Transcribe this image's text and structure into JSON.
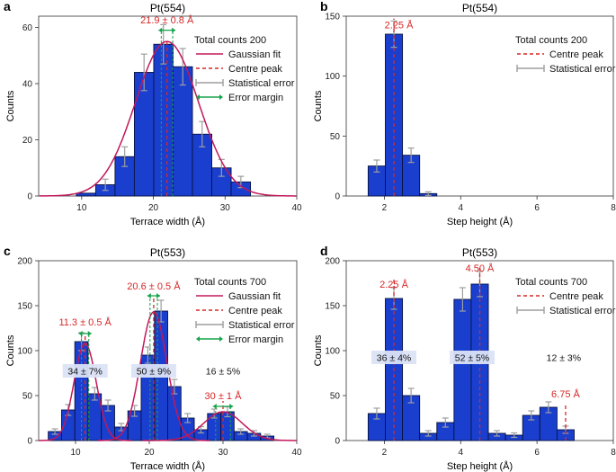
{
  "colors": {
    "bar_fill": "#1a3fcf",
    "bar_edge": "#08123f",
    "fit": "#c2185b",
    "centre": "#d62828",
    "error": "#9e9e9e",
    "margin": "#16a34a",
    "label_box": "#dbe3f5"
  },
  "chart_data": [
    {
      "id": "a",
      "type": "bar",
      "panel_letter": "a",
      "title": "Pt(554)",
      "xlabel": "Terrace width (Å)",
      "ylabel": "Counts",
      "xlim": [
        4,
        40
      ],
      "ylim": [
        0,
        64
      ],
      "xticks": [
        10,
        20,
        30,
        40
      ],
      "yticks": [
        0,
        20,
        40,
        60
      ],
      "bin_width": 2.7,
      "bins": [
        {
          "x": 7.9,
          "y": 0,
          "err": 0
        },
        {
          "x": 10.6,
          "y": 1,
          "err": 0
        },
        {
          "x": 13.3,
          "y": 4,
          "err": 2
        },
        {
          "x": 16.0,
          "y": 14,
          "err": 3.5
        },
        {
          "x": 18.7,
          "y": 44,
          "err": 6.5
        },
        {
          "x": 21.4,
          "y": 54,
          "err": 7
        },
        {
          "x": 24.1,
          "y": 46,
          "err": 6.5
        },
        {
          "x": 26.8,
          "y": 22,
          "err": 4.5
        },
        {
          "x": 29.5,
          "y": 10,
          "err": 3
        },
        {
          "x": 32.2,
          "y": 5,
          "err": 2
        },
        {
          "x": 34.9,
          "y": 0,
          "err": 0
        }
      ],
      "fits": [
        {
          "mu": 21.9,
          "sigma": 4.4,
          "amp": 55
        }
      ],
      "centres": [
        {
          "x": 21.9,
          "top": 56
        }
      ],
      "margins": [
        {
          "x0": 21.1,
          "x1": 22.7,
          "y": 59
        }
      ],
      "annotations": [
        {
          "text": "21.9 ± 0.8 Å",
          "x": 21.9,
          "y": 61.5,
          "color": "centre"
        }
      ],
      "region_labels": [],
      "legend": {
        "title": "Total counts 200",
        "items": [
          {
            "kind": "fit",
            "label": "Gaussian fit"
          },
          {
            "kind": "centre",
            "label": "Centre peak"
          },
          {
            "kind": "error",
            "label": "Statistical error"
          },
          {
            "kind": "margin",
            "label": "Error margin"
          }
        ]
      }
    },
    {
      "id": "b",
      "type": "bar",
      "panel_letter": "b",
      "title": "Pt(554)",
      "xlabel": "Step height (Å)",
      "ylabel": "Counts",
      "xlim": [
        1,
        8
      ],
      "ylim": [
        0,
        150
      ],
      "xticks": [
        2,
        4,
        6,
        8
      ],
      "yticks": [
        0,
        50,
        100,
        150
      ],
      "bin_width": 0.45,
      "bins": [
        {
          "x": 1.8,
          "y": 25,
          "err": 5
        },
        {
          "x": 2.25,
          "y": 135,
          "err": 11
        },
        {
          "x": 2.7,
          "y": 34,
          "err": 6
        },
        {
          "x": 3.15,
          "y": 2,
          "err": 1.5
        }
      ],
      "fits": [],
      "centres": [
        {
          "x": 2.25,
          "top": 148
        }
      ],
      "margins": [],
      "annotations": [
        {
          "text": "2.25 Å",
          "x": 2.38,
          "y": 140,
          "color": "centre"
        }
      ],
      "region_labels": [],
      "legend": {
        "title": "Total counts 200",
        "items": [
          {
            "kind": "centre",
            "label": "Centre peak"
          },
          {
            "kind": "error",
            "label": "Statistical error"
          }
        ]
      }
    },
    {
      "id": "c",
      "type": "bar",
      "panel_letter": "c",
      "title": "Pt(553)",
      "xlabel": "Terrace width (Å)",
      "ylabel": "Counts",
      "xlim": [
        5,
        40
      ],
      "ylim": [
        0,
        200
      ],
      "xticks": [
        10,
        20,
        30,
        40
      ],
      "yticks": [
        0,
        50,
        100,
        150,
        200
      ],
      "bin_width": 1.8,
      "bins": [
        {
          "x": 7.2,
          "y": 10,
          "err": 3
        },
        {
          "x": 9.0,
          "y": 34,
          "err": 6
        },
        {
          "x": 10.8,
          "y": 110,
          "err": 10
        },
        {
          "x": 12.6,
          "y": 52,
          "err": 7
        },
        {
          "x": 14.4,
          "y": 39,
          "err": 6
        },
        {
          "x": 16.2,
          "y": 15,
          "err": 4
        },
        {
          "x": 18.0,
          "y": 33,
          "err": 6
        },
        {
          "x": 19.8,
          "y": 95,
          "err": 9
        },
        {
          "x": 21.6,
          "y": 144,
          "err": 12
        },
        {
          "x": 23.4,
          "y": 60,
          "err": 8
        },
        {
          "x": 25.2,
          "y": 25,
          "err": 5
        },
        {
          "x": 27.0,
          "y": 12,
          "err": 3.5
        },
        {
          "x": 28.8,
          "y": 30,
          "err": 5
        },
        {
          "x": 30.6,
          "y": 32,
          "err": 5.5
        },
        {
          "x": 32.4,
          "y": 10,
          "err": 3
        },
        {
          "x": 34.2,
          "y": 8,
          "err": 3
        },
        {
          "x": 36.0,
          "y": 5,
          "err": 2
        }
      ],
      "fits": [
        {
          "mu": 11.3,
          "sigma": 1.5,
          "amp": 108
        },
        {
          "mu": 20.6,
          "sigma": 1.8,
          "amp": 143
        },
        {
          "mu": 30.0,
          "sigma": 2.6,
          "amp": 32
        }
      ],
      "centres": [
        {
          "x": 11.3,
          "top": 118
        },
        {
          "x": 20.6,
          "top": 158
        },
        {
          "x": 30.0,
          "top": 44
        }
      ],
      "margins": [
        {
          "x0": 10.8,
          "x1": 11.8,
          "y": 119
        },
        {
          "x0": 20.1,
          "x1": 21.1,
          "y": 161
        },
        {
          "x0": 29.0,
          "x1": 31.0,
          "y": 38
        }
      ],
      "annotations": [
        {
          "text": "11.3 ± 0.5 Å",
          "x": 11.3,
          "y": 128,
          "color": "centre"
        },
        {
          "text": "20.6 ± 0.5 Å",
          "x": 20.6,
          "y": 168,
          "color": "centre"
        },
        {
          "text": "30 ± 1 Å",
          "x": 30.0,
          "y": 46,
          "color": "centre"
        }
      ],
      "region_labels": [
        {
          "text": "34 ± 7%",
          "x": 11.3,
          "y": 75,
          "boxed": true
        },
        {
          "text": "50 ± 9%",
          "x": 20.6,
          "y": 75,
          "boxed": true
        },
        {
          "text": "16 ± 5%",
          "x": 30.0,
          "y": 75,
          "boxed": false
        }
      ],
      "legend": {
        "title": "Total counts 700",
        "items": [
          {
            "kind": "fit",
            "label": "Gaussian fit"
          },
          {
            "kind": "centre",
            "label": "Centre peak"
          },
          {
            "kind": "error",
            "label": "Statistical error"
          },
          {
            "kind": "margin",
            "label": "Error margin"
          }
        ]
      }
    },
    {
      "id": "d",
      "type": "bar",
      "panel_letter": "d",
      "title": "Pt(553)",
      "xlabel": "Step height (Å)",
      "ylabel": "Counts",
      "xlim": [
        1,
        8
      ],
      "ylim": [
        0,
        200
      ],
      "xticks": [
        2,
        4,
        6,
        8
      ],
      "yticks": [
        0,
        50,
        100,
        150,
        200
      ],
      "bin_width": 0.45,
      "bins": [
        {
          "x": 1.8,
          "y": 30,
          "err": 6
        },
        {
          "x": 2.25,
          "y": 158,
          "err": 12
        },
        {
          "x": 2.7,
          "y": 50,
          "err": 8
        },
        {
          "x": 3.15,
          "y": 8,
          "err": 3
        },
        {
          "x": 3.6,
          "y": 20,
          "err": 5
        },
        {
          "x": 4.05,
          "y": 157,
          "err": 13
        },
        {
          "x": 4.5,
          "y": 174,
          "err": 14
        },
        {
          "x": 4.95,
          "y": 8,
          "err": 3
        },
        {
          "x": 5.4,
          "y": 6,
          "err": 2.5
        },
        {
          "x": 5.85,
          "y": 28,
          "err": 5
        },
        {
          "x": 6.3,
          "y": 37,
          "err": 6
        },
        {
          "x": 6.75,
          "y": 12,
          "err": 4
        }
      ],
      "fits": [],
      "centres": [
        {
          "x": 2.25,
          "top": 182
        },
        {
          "x": 4.5,
          "top": 192
        },
        {
          "x": 6.75,
          "top": 42
        }
      ],
      "margins": [],
      "annotations": [
        {
          "text": "2.25 Å",
          "x": 2.25,
          "y": 170,
          "color": "centre"
        },
        {
          "text": "4.50 Å",
          "x": 4.5,
          "y": 188,
          "color": "centre"
        },
        {
          "text": "6.75 Å",
          "x": 6.75,
          "y": 48,
          "color": "centre"
        }
      ],
      "region_labels": [
        {
          "text": "36 ± 4%",
          "x": 2.25,
          "y": 90,
          "boxed": true
        },
        {
          "text": "52 ± 5%",
          "x": 4.3,
          "y": 90,
          "boxed": true
        },
        {
          "text": "12 ± 3%",
          "x": 6.7,
          "y": 90,
          "boxed": false
        }
      ],
      "legend": {
        "title": "Total counts 700",
        "items": [
          {
            "kind": "centre",
            "label": "Centre peak"
          },
          {
            "kind": "error",
            "label": "Statistical error"
          }
        ]
      }
    }
  ]
}
